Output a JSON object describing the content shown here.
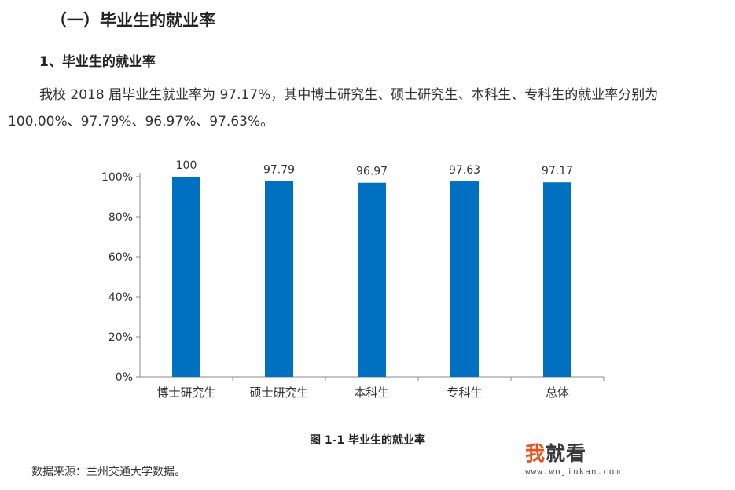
{
  "section_heading": "（一）毕业生的就业率",
  "subsection_heading": "1、毕业生的就业率",
  "paragraph": {
    "line1": "我校 2018 届毕业生就业率为 97.17%，其中博士研究生、硕士研究生、本科生、专科生的就业率分别为",
    "line2": "100.00%、97.79%、96.97%、97.63%。"
  },
  "chart_data": {
    "type": "bar",
    "categories": [
      "博士研究生",
      "硕士研究生",
      "本科生",
      "专科生",
      "总体"
    ],
    "values": [
      100,
      97.79,
      96.97,
      97.63,
      97.17
    ],
    "data_labels": [
      "100",
      "97.79",
      "96.97",
      "97.63",
      "97.17"
    ],
    "ylim": [
      0,
      100
    ],
    "yticks": [
      "0%",
      "20%",
      "40%",
      "60%",
      "80%",
      "100%"
    ],
    "bar_color": "#0070c0",
    "grid": false,
    "legend": "none"
  },
  "caption": "图 1-1  毕业生的就业率",
  "source": "数据来源：兰州交通大学数据。",
  "watermark": {
    "first_char": "我",
    "rest": "就看",
    "url": "www.wojiukan.com"
  }
}
